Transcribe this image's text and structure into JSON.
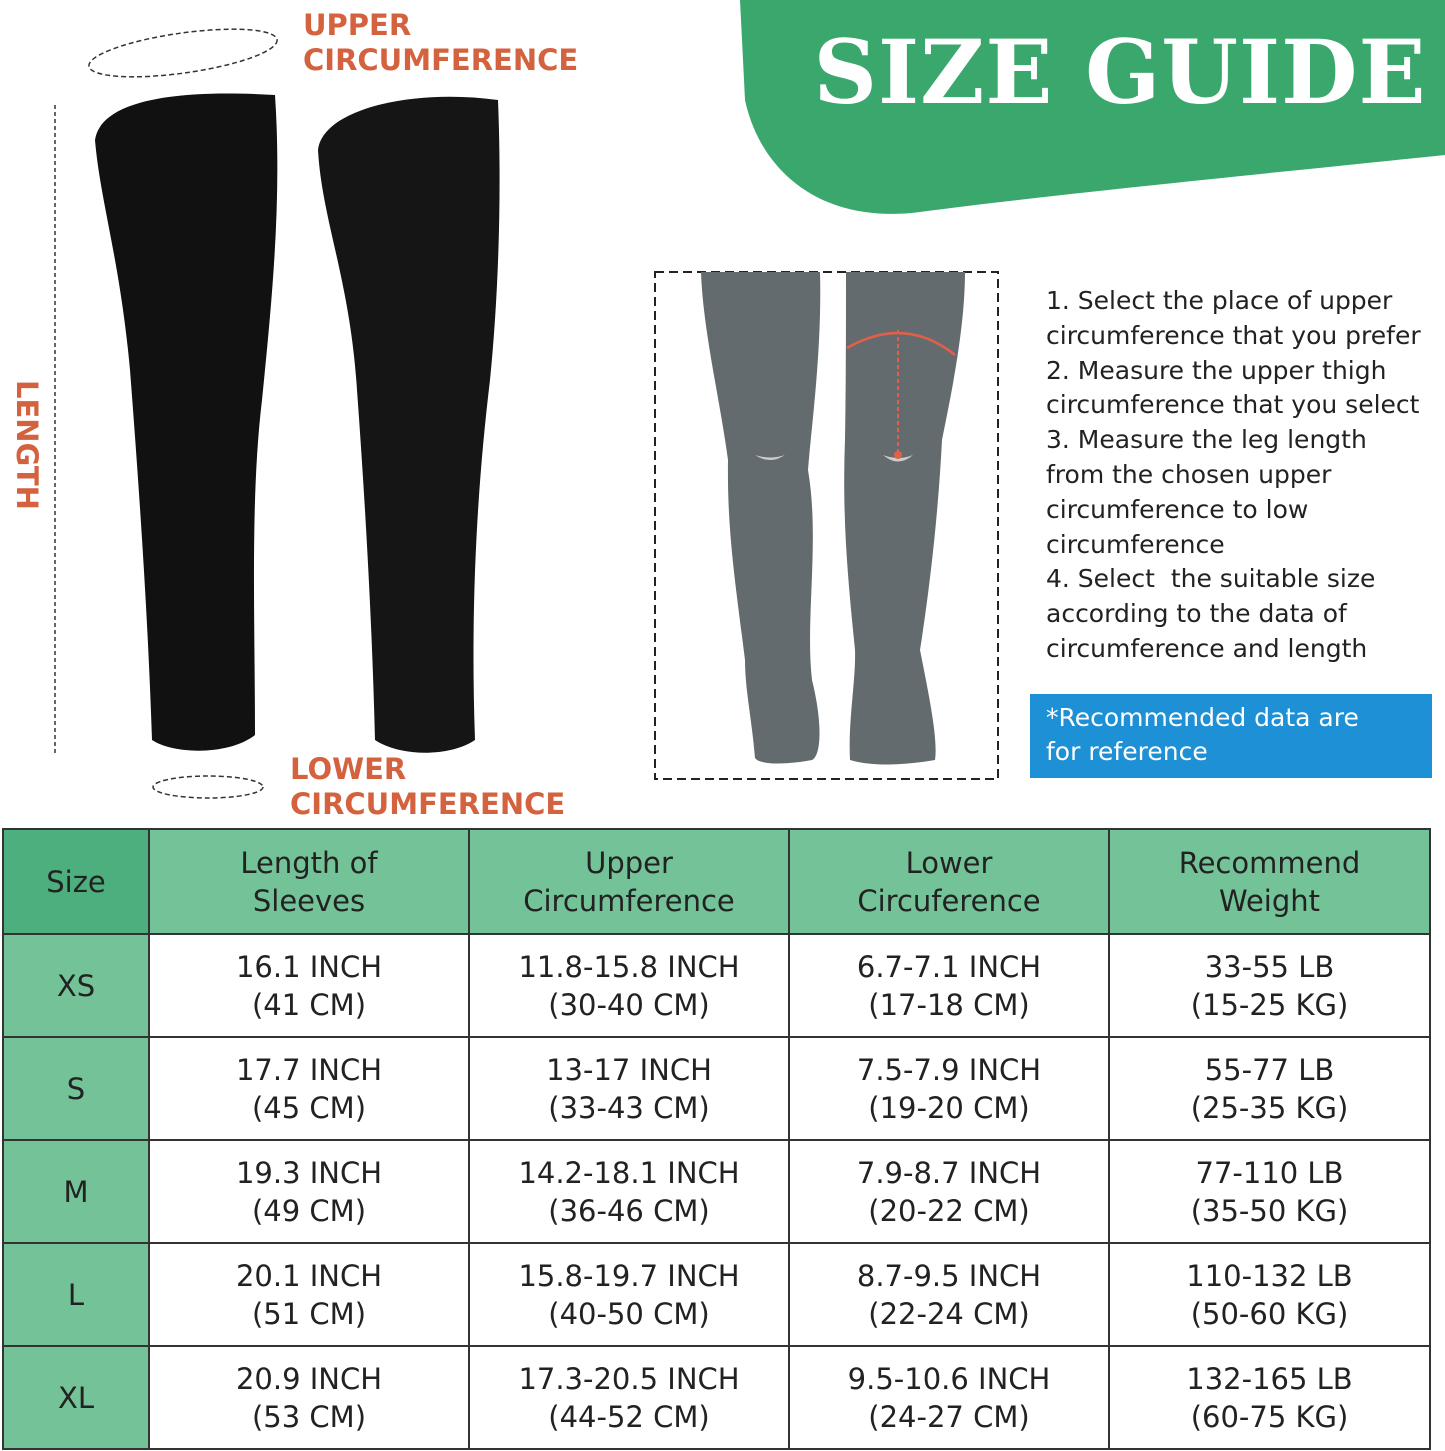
{
  "banner": {
    "title": "SIZE GUIDE",
    "color": "#3aa76d"
  },
  "labels": {
    "upper": [
      "UPPER",
      "CIRCUMFERENCE"
    ],
    "lower": [
      "LOWER",
      "CIRCUMFERENCE"
    ],
    "length": "LENGTH",
    "color": "#d4623f"
  },
  "steps": [
    "1. Select the place of upper",
    "circumference that you prefer",
    "2. Measure the upper thigh",
    "circumference that you select",
    "3. Measure the leg length",
    "from the chosen upper",
    "circumference to low",
    "circumference",
    "4. Select  the suitable size",
    "according to the data of",
    "circumference and length"
  ],
  "note": [
    "*Recommended data are",
    "for reference"
  ],
  "table": {
    "headers": [
      [
        "Size"
      ],
      [
        "Length of",
        "Sleeves"
      ],
      [
        "Upper",
        "Circumference"
      ],
      [
        "Lower",
        "Circuference"
      ],
      [
        "Recommend",
        "Weight"
      ]
    ],
    "rows": [
      {
        "size": "XS",
        "cells": [
          [
            "16.1 INCH",
            "(41 CM)"
          ],
          [
            "11.8-15.8 INCH",
            "(30-40 CM)"
          ],
          [
            "6.7-7.1 INCH",
            "(17-18 CM)"
          ],
          [
            "33-55 LB",
            "(15-25 KG)"
          ]
        ]
      },
      {
        "size": "S",
        "cells": [
          [
            "17.7 INCH",
            "(45 CM)"
          ],
          [
            "13-17 INCH",
            "(33-43 CM)"
          ],
          [
            "7.5-7.9 INCH",
            "(19-20 CM)"
          ],
          [
            "55-77 LB",
            "(25-35 KG)"
          ]
        ]
      },
      {
        "size": "M",
        "cells": [
          [
            "19.3 INCH",
            "(49 CM)"
          ],
          [
            "14.2-18.1 INCH",
            "(36-46 CM)"
          ],
          [
            "7.9-8.7 INCH",
            "(20-22 CM)"
          ],
          [
            "77-110 LB",
            "(35-50 KG)"
          ]
        ]
      },
      {
        "size": "L",
        "cells": [
          [
            "20.1 INCH",
            "(51 CM)"
          ],
          [
            "15.8-19.7 INCH",
            "(40-50 CM)"
          ],
          [
            "8.7-9.5 INCH",
            "(22-24 CM)"
          ],
          [
            "110-132 LB",
            "(50-60 KG)"
          ]
        ]
      },
      {
        "size": "XL",
        "cells": [
          [
            "20.9 INCH",
            "(53 CM)"
          ],
          [
            "17.3-20.5 INCH",
            "(44-52 CM)"
          ],
          [
            "9.5-10.6 INCH",
            "(24-27 CM)"
          ],
          [
            "132-165 LB",
            "(60-75 KG)"
          ]
        ]
      }
    ]
  }
}
